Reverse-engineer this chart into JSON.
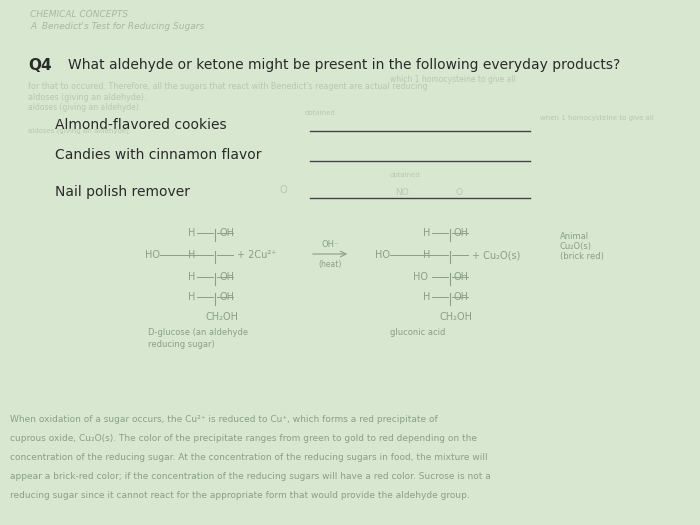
{
  "bg_color": "#d8e8d0",
  "header_text": "CHEMICAL CONCEPTS",
  "subheader_text": "A  Benedict's Test for Reducing Sugars",
  "q4_label": "Q4",
  "q4_text": "What aldehyde or ketone might be present in the following everyday products?",
  "items": [
    "Almond-flavored cookies",
    "Candies with cinnamon flavor",
    "Nail polish remover"
  ],
  "faint_color": "#a8b8a0",
  "ghost_color": "#b8c8b0",
  "dark_color": "#2a2a2a",
  "line_color": "#444444",
  "struct_color": "#8a9e8a"
}
